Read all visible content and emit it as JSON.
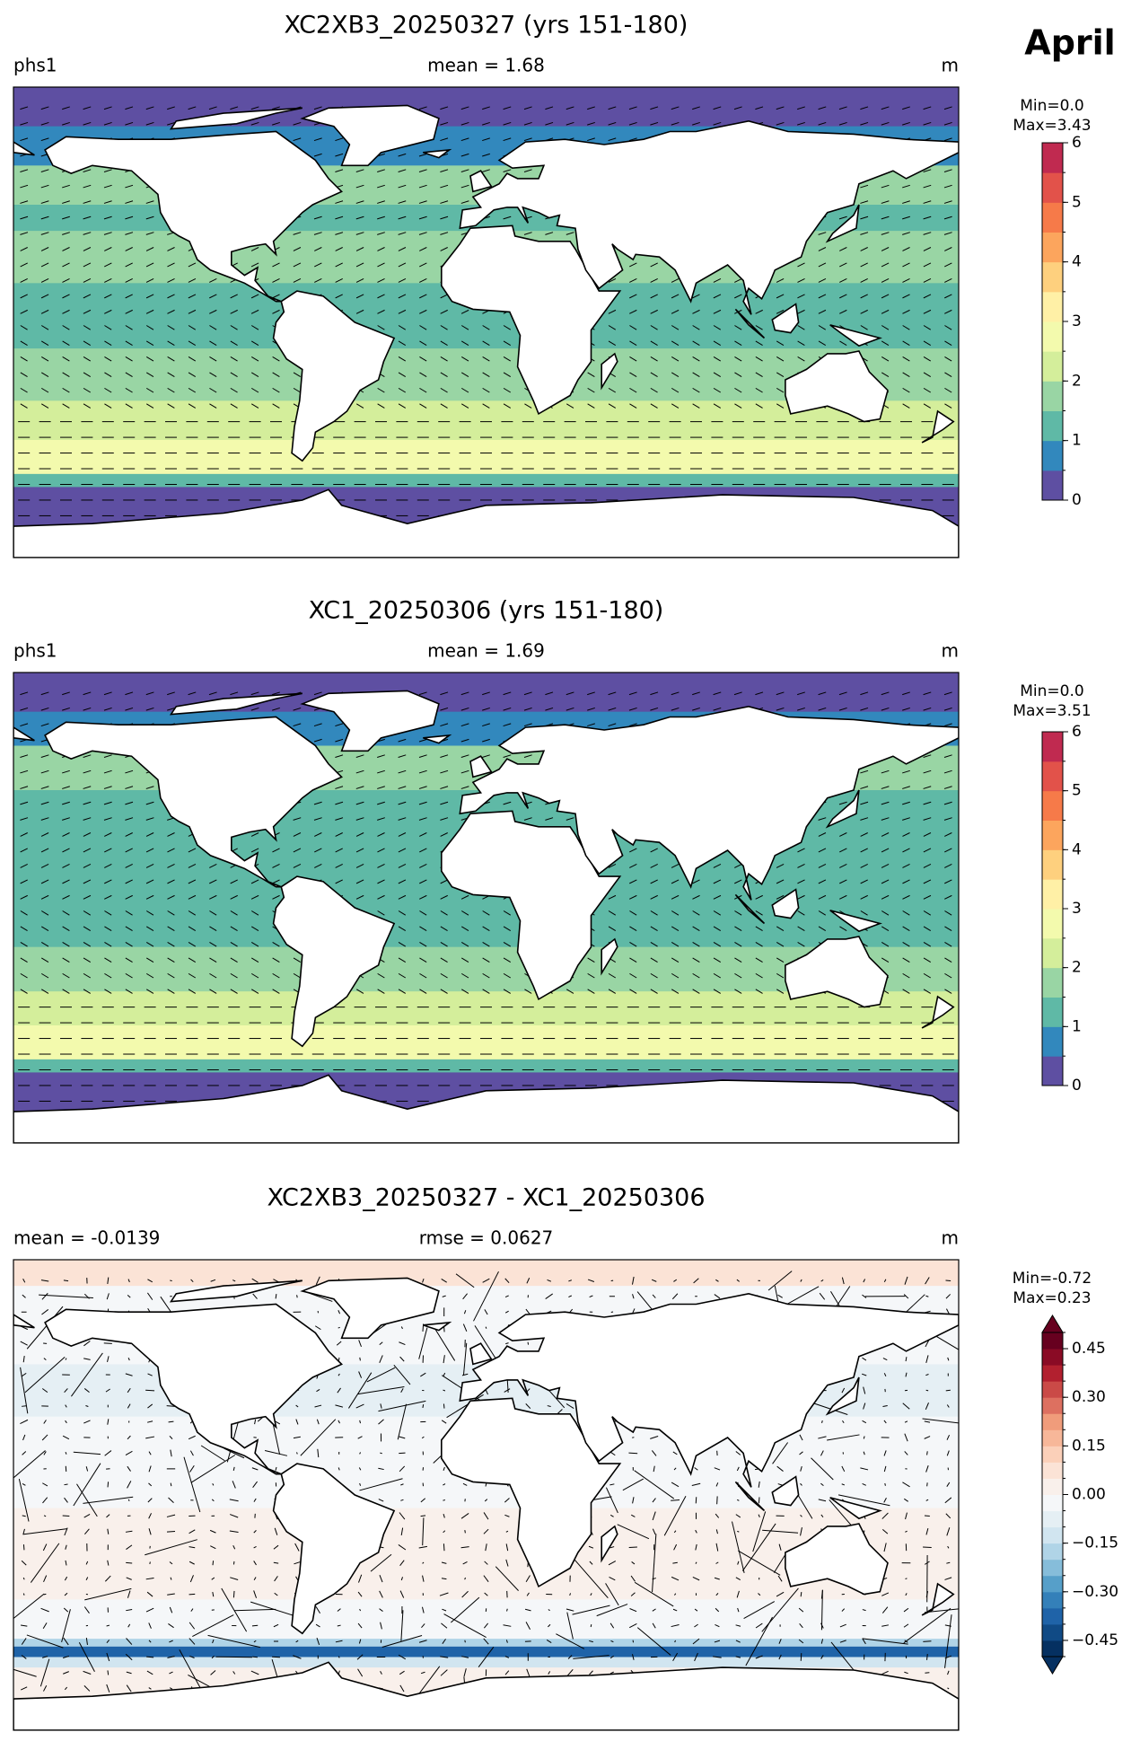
{
  "month": "April",
  "panels": [
    {
      "title": "XC2XB3_20250327 (yrs 151-180)",
      "left_label": "phs1",
      "center_label": "mean = 1.68",
      "right_label": "m",
      "min_label": "Min=0.0",
      "max_label": "Max=3.43",
      "colorbar": {
        "lim": [
          0,
          6
        ],
        "ticks": [
          0,
          1,
          2,
          3,
          4,
          5,
          6
        ],
        "levels": [
          0,
          0.5,
          1,
          1.5,
          2,
          2.5,
          3,
          3.5,
          4,
          4.5,
          5,
          5.5,
          6
        ],
        "colors": [
          "#5e4fa2",
          "#3288bd",
          "#5fb9a6",
          "#99d5a4",
          "#d4ee9b",
          "#f3faad",
          "#fff0a6",
          "#fed07e",
          "#fca55d",
          "#f67a49",
          "#e2524a",
          "#c02a50",
          "#9e0142"
        ]
      }
    },
    {
      "title": "XC1_20250306 (yrs 151-180)",
      "left_label": "phs1",
      "center_label": "mean = 1.69",
      "right_label": "m",
      "min_label": "Min=0.0",
      "max_label": "Max=3.51",
      "colorbar": {
        "lim": [
          0,
          6
        ],
        "ticks": [
          0,
          1,
          2,
          3,
          4,
          5,
          6
        ],
        "levels": [
          0,
          0.5,
          1,
          1.5,
          2,
          2.5,
          3,
          3.5,
          4,
          4.5,
          5,
          5.5,
          6
        ],
        "colors": [
          "#5e4fa2",
          "#3288bd",
          "#5fb9a6",
          "#99d5a4",
          "#d4ee9b",
          "#f3faad",
          "#fff0a6",
          "#fed07e",
          "#fca55d",
          "#f67a49",
          "#e2524a",
          "#c02a50",
          "#9e0142"
        ]
      }
    },
    {
      "title": "XC2XB3_20250327 - XC1_20250306",
      "left_label": "mean = -0.0139",
      "center_label": "rmse = 0.0627",
      "right_label": "m",
      "min_label": "Min=-0.72",
      "max_label": "Max=0.23",
      "colorbar": {
        "lim": [
          -0.5,
          0.5
        ],
        "extend": "both",
        "ticks": [
          {
            "value": -0.45,
            "label": "−0.45"
          },
          {
            "value": -0.3,
            "label": "−0.30"
          },
          {
            "value": -0.15,
            "label": "−0.15"
          },
          {
            "value": 0,
            "label": "0.00"
          },
          0.15,
          {
            "value": 0.3,
            "label": "0.30"
          },
          0.45
        ],
        "levels": [
          -0.5,
          -0.45,
          -0.4,
          -0.35,
          -0.3,
          -0.25,
          -0.2,
          -0.15,
          -0.1,
          -0.05,
          0,
          0.05,
          0.1,
          0.15,
          0.2,
          0.25,
          0.3,
          0.35,
          0.4,
          0.45,
          0.5
        ],
        "colors": [
          "#053061",
          "#104a85",
          "#1f63a8",
          "#3480b9",
          "#569fc9",
          "#86bdda",
          "#b0d4e7",
          "#d1e5f0",
          "#e5eff4",
          "#f5f7f9",
          "#f9f0eb",
          "#fbe3d6",
          "#fbd0b9",
          "#f7b799",
          "#f09c7b",
          "#dd7060",
          "#ca4a47",
          "#b2202f",
          "#8a0b25",
          "#67001f"
        ]
      }
    }
  ]
}
